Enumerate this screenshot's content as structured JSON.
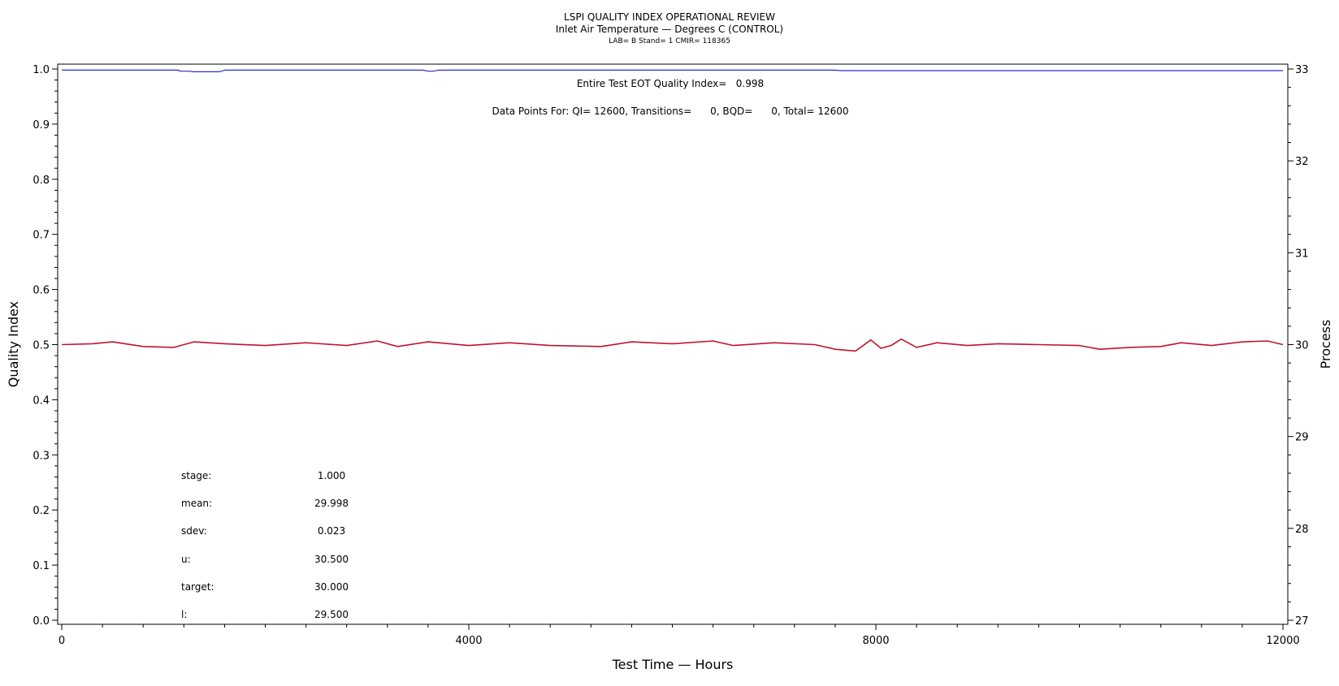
{
  "chart_data": {
    "type": "line",
    "title": "LSPI QUALITY INDEX OPERATIONAL REVIEW",
    "subtitle": "Inlet Air Temperature — Degrees C (CONTROL)",
    "subtitle2": "LAB= B Stand= 1 CMIR= 118365",
    "xlabel": "Test Time — Hours",
    "ylabel_left": "Quality Index",
    "ylabel_right": "Process",
    "xlim": [
      0,
      12000
    ],
    "ylim_left": [
      0.0,
      1.0
    ],
    "ylim_right": [
      27,
      33
    ],
    "x_ticks": [
      "0",
      "4000",
      "8000",
      "12000"
    ],
    "y_left_ticks": [
      "0.0",
      "0.1",
      "0.2",
      "0.3",
      "0.4",
      "0.5",
      "0.6",
      "0.7",
      "0.8",
      "0.9",
      "1.0"
    ],
    "y_right_ticks": [
      "27",
      "28",
      "29",
      "30",
      "31",
      "32",
      "33"
    ],
    "grid": false,
    "series": [
      {
        "axis": "left",
        "color": "#2b2bd6",
        "x": [
          0,
          1150,
          1160,
          1250,
          1300,
          1550,
          1600,
          3550,
          3600,
          3650,
          3700,
          7600,
          7650,
          12000
        ],
        "y": [
          0.998,
          0.998,
          0.996,
          0.996,
          0.995,
          0.995,
          0.998,
          0.998,
          0.996,
          0.996,
          0.998,
          0.998,
          0.997,
          0.997
        ]
      },
      {
        "axis": "right",
        "color": "#c0142e",
        "x": [
          0,
          300,
          500,
          800,
          1100,
          1300,
          1600,
          2000,
          2400,
          2800,
          3100,
          3300,
          3600,
          4000,
          4400,
          4800,
          5300,
          5600,
          6000,
          6400,
          6600,
          7000,
          7400,
          7600,
          7800,
          7950,
          8050,
          8150,
          8250,
          8400,
          8600,
          8900,
          9200,
          9600,
          10000,
          10200,
          10500,
          10800,
          11000,
          11300,
          11600,
          11850,
          12000
        ],
        "y": [
          30.0,
          30.01,
          30.03,
          29.98,
          29.97,
          30.03,
          30.01,
          29.99,
          30.02,
          29.99,
          30.04,
          29.98,
          30.03,
          29.99,
          30.02,
          29.99,
          29.98,
          30.03,
          30.01,
          30.04,
          29.99,
          30.02,
          30.0,
          29.95,
          29.93,
          30.05,
          29.96,
          29.99,
          30.06,
          29.97,
          30.02,
          29.99,
          30.01,
          30.0,
          29.99,
          29.95,
          29.97,
          29.98,
          30.02,
          29.99,
          30.03,
          30.04,
          30.0
        ]
      }
    ],
    "annotations": {
      "eot_qi": "Entire Test EOT Quality Index=   0.998",
      "data_points": "Data Points For: QI= 12600, Transitions=      0, BQD=      0, Total= 12600"
    },
    "stats": [
      {
        "label": "stage:",
        "value": "1.000"
      },
      {
        "label": "mean:",
        "value": "29.998"
      },
      {
        "label": "sdev:",
        "value": "0.023"
      },
      {
        "label": "u:",
        "value": "30.500"
      },
      {
        "label": "target:",
        "value": "30.000"
      },
      {
        "label": "l:",
        "value": "29.500"
      }
    ]
  }
}
